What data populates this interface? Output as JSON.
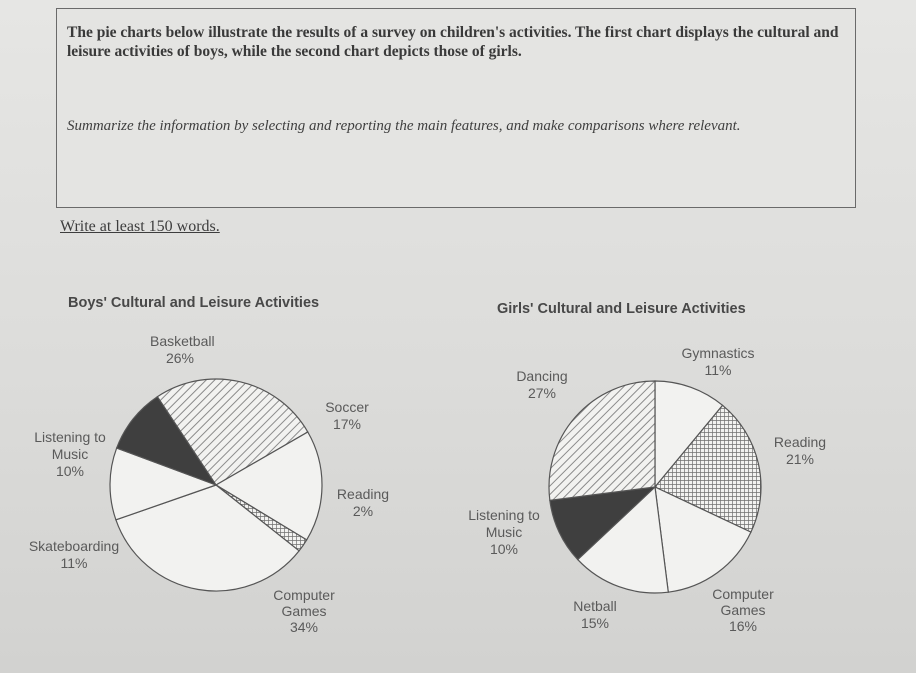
{
  "prompt": {
    "title": "The pie charts below illustrate the results of a survey on children's activities. The first chart displays the cultural and leisure activities of boys, while the second chart depicts those of girls.",
    "instruction": "Summarize the information by selecting and reporting the main features, and make comparisons where relevant.",
    "word_count": "Write at least 150 words."
  },
  "chart_data": [
    {
      "type": "pie",
      "title": "Boys' Cultural and Leisure Activities",
      "slices": [
        {
          "label": "Basketball",
          "value": 26,
          "display": "26%",
          "fill": "hatch"
        },
        {
          "label": "Soccer",
          "value": 17,
          "display": "17%",
          "fill": "white"
        },
        {
          "label": "Reading",
          "value": 2,
          "display": "2%",
          "fill": "grid"
        },
        {
          "label": "Computer Games",
          "value": 34,
          "display": "34%",
          "fill": "white"
        },
        {
          "label": "Skateboarding",
          "value": 11,
          "display": "11%",
          "fill": "white"
        },
        {
          "label": "Listening to Music",
          "value": 10,
          "display": "10%",
          "fill": "dark"
        }
      ],
      "colors": {
        "dark": "#3f3f3f",
        "stroke": "#555555",
        "face": "#f2f2f0"
      }
    },
    {
      "type": "pie",
      "title": "Girls' Cultural and Leisure Activities",
      "slices": [
        {
          "label": "Gymnastics",
          "value": 11,
          "display": "11%",
          "fill": "white"
        },
        {
          "label": "Reading",
          "value": 21,
          "display": "21%",
          "fill": "grid"
        },
        {
          "label": "Computer Games",
          "value": 16,
          "display": "16%",
          "fill": "white"
        },
        {
          "label": "Netball",
          "value": 15,
          "display": "15%",
          "fill": "white"
        },
        {
          "label": "Listening to Music",
          "value": 10,
          "display": "10%",
          "fill": "dark"
        },
        {
          "label": "Dancing",
          "value": 27,
          "display": "27%",
          "fill": "hatch"
        }
      ],
      "colors": {
        "dark": "#3f3f3f",
        "stroke": "#555555",
        "face": "#f2f2f0"
      }
    }
  ]
}
